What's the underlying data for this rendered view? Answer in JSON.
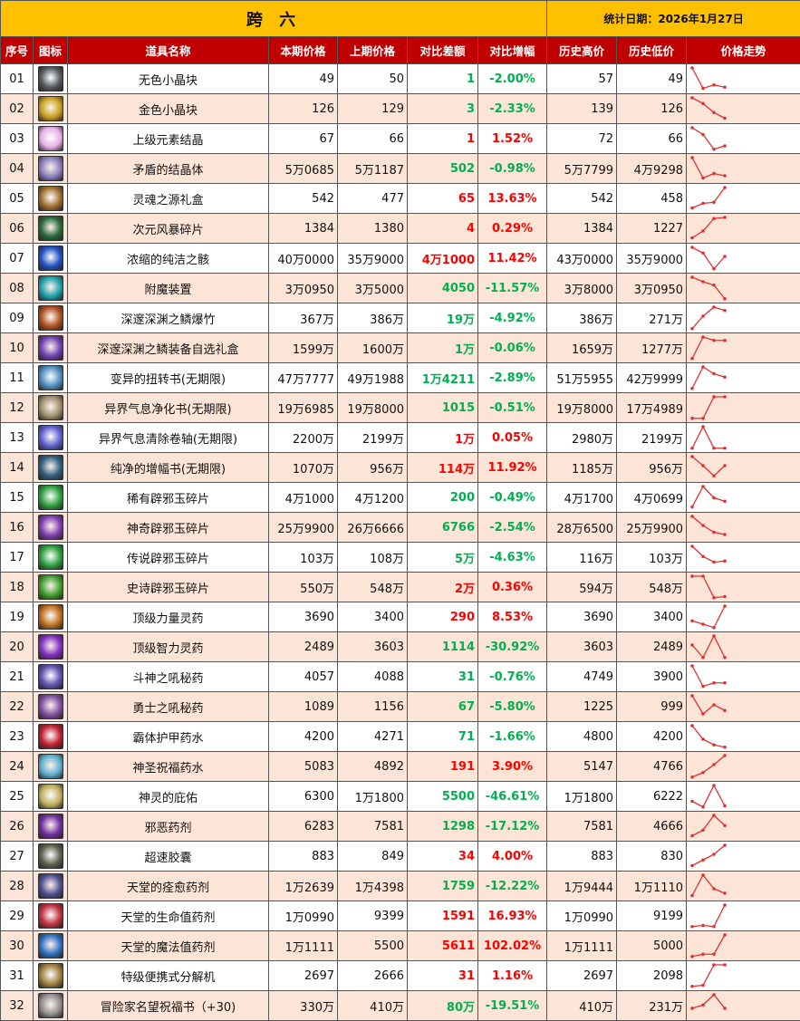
{
  "title": "跨 六",
  "date_label": "统计日期：2026年1月27日",
  "colors": {
    "header": "#C00000",
    "title_bg": "#FFC000",
    "alt_row": "#FCE4D6",
    "up": "#FF0000",
    "down": "#00B050",
    "trend_line": "#E03030"
  },
  "columns": [
    "序号",
    "图标",
    "道具名称",
    "本期价格",
    "上期价格",
    "对比差额",
    "对比增幅",
    "历史高价",
    "历史低价",
    "价格走势"
  ],
  "rows": [
    {
      "no": "01",
      "icon": "#555b60",
      "name": "无色小晶块",
      "cur": "49",
      "prev": "50",
      "diff": "1",
      "pct": "-2.00%",
      "high": "57",
      "low": "49",
      "dir": "down",
      "trend": [
        1,
        0.1,
        0.25,
        0.15
      ]
    },
    {
      "no": "02",
      "icon": "#c9a020",
      "name": "金色小晶块",
      "cur": "126",
      "prev": "129",
      "diff": "3",
      "pct": "-2.33%",
      "high": "139",
      "low": "126",
      "dir": "down",
      "trend": [
        1,
        0.75,
        0.35,
        0.1
      ]
    },
    {
      "no": "03",
      "icon": "#e8b0e8",
      "name": "上级元素结晶",
      "cur": "67",
      "prev": "66",
      "diff": "1",
      "pct": "1.52%",
      "high": "72",
      "low": "66",
      "dir": "up",
      "trend": [
        1,
        0.7,
        0.05,
        0.2
      ]
    },
    {
      "no": "04",
      "icon": "#8a80c0",
      "name": "矛盾的结晶体",
      "cur": "5万0685",
      "prev": "5万1187",
      "diff": "502",
      "pct": "-0.98%",
      "high": "5万7799",
      "low": "4万9298",
      "dir": "down",
      "trend": [
        1,
        0.1,
        0.3,
        0.2
      ]
    },
    {
      "no": "05",
      "icon": "#a07030",
      "name": "灵魂之源礼盒",
      "cur": "542",
      "prev": "477",
      "diff": "65",
      "pct": "13.63%",
      "high": "542",
      "low": "458",
      "dir": "up",
      "trend": [
        0.1,
        0.3,
        0.35,
        1
      ]
    },
    {
      "no": "06",
      "icon": "#2a6a3a",
      "name": "次元风暴碎片",
      "cur": "1384",
      "prev": "1380",
      "diff": "4",
      "pct": "0.29%",
      "high": "1384",
      "low": "1227",
      "dir": "up",
      "trend": [
        0.1,
        0.4,
        0.95,
        1
      ]
    },
    {
      "no": "07",
      "icon": "#2050c0",
      "name": "浓缩的纯洁之骸",
      "cur": "40万0000",
      "prev": "35万9000",
      "diff": "4万1000",
      "pct": "11.42%",
      "high": "43万0000",
      "low": "35万9000",
      "dir": "up",
      "trend": [
        1,
        0.75,
        0.05,
        0.6
      ]
    },
    {
      "no": "08",
      "icon": "#20a0a8",
      "name": "附魔装置",
      "cur": "3万0950",
      "prev": "3万5000",
      "diff": "4050",
      "pct": "-11.57%",
      "high": "3万8000",
      "low": "3万0950",
      "dir": "down",
      "trend": [
        1,
        0.8,
        0.65,
        0.05
      ]
    },
    {
      "no": "09",
      "icon": "#b05020",
      "name": "深邃深渊之鳞爆竹",
      "cur": "367万",
      "prev": "386万",
      "diff": "19万",
      "pct": "-4.92%",
      "high": "386万",
      "low": "271万",
      "dir": "down",
      "trend": [
        0.05,
        0.6,
        1,
        0.85
      ]
    },
    {
      "no": "10",
      "icon": "#7040b0",
      "name": "深邃深渊之鳞装备自选礼盒",
      "cur": "1599万",
      "prev": "1600万",
      "diff": "1万",
      "pct": "-0.06%",
      "high": "1659万",
      "low": "1277万",
      "dir": "down",
      "trend": [
        0.05,
        1,
        0.85,
        0.85
      ]
    },
    {
      "no": "11",
      "icon": "#5090c0",
      "name": "变异的扭转书(无期限)",
      "cur": "47万7777",
      "prev": "49万1988",
      "diff": "1万4211",
      "pct": "-2.89%",
      "high": "51万5955",
      "low": "42万9999",
      "dir": "down",
      "trend": [
        0.05,
        1,
        0.7,
        0.55
      ]
    },
    {
      "no": "12",
      "icon": "#a09070",
      "name": "异界气息净化书(无期限)",
      "cur": "19万6985",
      "prev": "19万8000",
      "diff": "1015",
      "pct": "-0.51%",
      "high": "19万8000",
      "low": "17万4989",
      "dir": "down",
      "trend": [
        0.05,
        0.05,
        1,
        1
      ]
    },
    {
      "no": "13",
      "icon": "#6060d0",
      "name": "异界气息清除卷轴(无期限)",
      "cur": "2200万",
      "prev": "2199万",
      "diff": "1万",
      "pct": "0.05%",
      "high": "2980万",
      "low": "2199万",
      "dir": "up",
      "trend": [
        0.05,
        1,
        0.05,
        0.05
      ]
    },
    {
      "no": "14",
      "icon": "#306080",
      "name": "纯净的增幅书(无期限)",
      "cur": "1070万",
      "prev": "956万",
      "diff": "114万",
      "pct": "11.92%",
      "high": "1185万",
      "low": "956万",
      "dir": "up",
      "trend": [
        1,
        0.6,
        0.15,
        0.6
      ]
    },
    {
      "no": "15",
      "icon": "#30a040",
      "name": "稀有辟邪玉碎片",
      "cur": "4万1000",
      "prev": "4万1200",
      "diff": "200",
      "pct": "-0.49%",
      "high": "4万1700",
      "low": "4万0699",
      "dir": "down",
      "trend": [
        0.1,
        1,
        0.5,
        0.35
      ]
    },
    {
      "no": "16",
      "icon": "#8040b0",
      "name": "神奇辟邪玉碎片",
      "cur": "25万9900",
      "prev": "26万6666",
      "diff": "6766",
      "pct": "-2.54%",
      "high": "28万6500",
      "low": "25万9900",
      "dir": "down",
      "trend": [
        1,
        0.6,
        0.3,
        0.2
      ]
    },
    {
      "no": "17",
      "icon": "#30a040",
      "name": "传说辟邪玉碎片",
      "cur": "103万",
      "prev": "108万",
      "diff": "5万",
      "pct": "-4.63%",
      "high": "116万",
      "low": "103万",
      "dir": "down",
      "trend": [
        1,
        0.55,
        0.3,
        0.35
      ]
    },
    {
      "no": "18",
      "icon": "#40a030",
      "name": "史诗辟邪玉碎片",
      "cur": "550万",
      "prev": "548万",
      "diff": "2万",
      "pct": "0.36%",
      "high": "594万",
      "low": "548万",
      "dir": "up",
      "trend": [
        1,
        1,
        0.05,
        0.1
      ]
    },
    {
      "no": "19",
      "icon": "#c07020",
      "name": "顶级力量灵药",
      "cur": "3690",
      "prev": "3400",
      "diff": "290",
      "pct": "8.53%",
      "high": "3690",
      "low": "3400",
      "dir": "up",
      "trend": [
        0.35,
        0.2,
        0.05,
        1
      ]
    },
    {
      "no": "20",
      "icon": "#8030c0",
      "name": "顶级智力灵药",
      "cur": "2489",
      "prev": "3603",
      "diff": "1114",
      "pct": "-30.92%",
      "high": "3603",
      "low": "2489",
      "dir": "down",
      "trend": [
        0.6,
        0.05,
        1,
        0.05
      ]
    },
    {
      "no": "21",
      "icon": "#6050b0",
      "name": "斗神之吼秘药",
      "cur": "4057",
      "prev": "4088",
      "diff": "31",
      "pct": "-0.76%",
      "high": "4749",
      "low": "3900",
      "dir": "down",
      "trend": [
        1,
        0.1,
        0.25,
        0.25
      ]
    },
    {
      "no": "22",
      "icon": "#8050a0",
      "name": "勇士之吼秘药",
      "cur": "1089",
      "prev": "1156",
      "diff": "67",
      "pct": "-5.80%",
      "high": "1225",
      "low": "999",
      "dir": "down",
      "trend": [
        1,
        0.2,
        0.6,
        0.35
      ]
    },
    {
      "no": "23",
      "icon": "#c02030",
      "name": "霸体护甲药水",
      "cur": "4200",
      "prev": "4271",
      "diff": "71",
      "pct": "-1.66%",
      "high": "4800",
      "low": "4200",
      "dir": "down",
      "trend": [
        1,
        0.4,
        0.15,
        0.05
      ]
    },
    {
      "no": "24",
      "icon": "#60b0d0",
      "name": "神圣祝福药水",
      "cur": "5083",
      "prev": "4892",
      "diff": "191",
      "pct": "3.90%",
      "high": "5147",
      "low": "4766",
      "dir": "up",
      "trend": [
        0.05,
        0.25,
        0.6,
        1
      ]
    },
    {
      "no": "25",
      "icon": "#c0b060",
      "name": "神灵的庇佑",
      "cur": "6300",
      "prev": "1万1800",
      "diff": "5500",
      "pct": "-46.61%",
      "high": "1万1800",
      "low": "6222",
      "dir": "down",
      "trend": [
        0.3,
        0.05,
        1,
        0.1
      ]
    },
    {
      "no": "26",
      "icon": "#7030a0",
      "name": "邪恶药剂",
      "cur": "6283",
      "prev": "7581",
      "diff": "1298",
      "pct": "-17.12%",
      "high": "7581",
      "low": "4666",
      "dir": "down",
      "trend": [
        0.1,
        0.35,
        1,
        0.55
      ]
    },
    {
      "no": "27",
      "icon": "#606050",
      "name": "超速胶囊",
      "cur": "883",
      "prev": "849",
      "diff": "34",
      "pct": "4.00%",
      "high": "883",
      "low": "830",
      "dir": "up",
      "trend": [
        0.1,
        0.35,
        0.6,
        1
      ]
    },
    {
      "no": "28",
      "icon": "#505090",
      "name": "天堂的痊愈药剂",
      "cur": "1万2639",
      "prev": "1万4398",
      "diff": "1759",
      "pct": "-12.22%",
      "high": "1万9444",
      "low": "1万1110",
      "dir": "down",
      "trend": [
        0.1,
        1,
        0.4,
        0.2
      ]
    },
    {
      "no": "29",
      "icon": "#c03040",
      "name": "天堂的生命值药剂",
      "cur": "1万0990",
      "prev": "9399",
      "diff": "1591",
      "pct": "16.93%",
      "high": "1万0990",
      "low": "9199",
      "dir": "up",
      "trend": [
        0.05,
        0.1,
        0.05,
        1
      ]
    },
    {
      "no": "30",
      "icon": "#3070c0",
      "name": "天堂的魔法值药剂",
      "cur": "1万1111",
      "prev": "5500",
      "diff": "5611",
      "pct": "102.02%",
      "high": "1万1111",
      "low": "5000",
      "dir": "up",
      "trend": [
        0.05,
        0.15,
        0.15,
        1
      ]
    },
    {
      "no": "31",
      "icon": "#a08040",
      "name": "特级便携式分解机",
      "cur": "2697",
      "prev": "2666",
      "diff": "31",
      "pct": "1.16%",
      "high": "2697",
      "low": "2098",
      "dir": "up",
      "trend": [
        0.05,
        0.1,
        1,
        1
      ]
    },
    {
      "no": "32",
      "icon": "#909090",
      "name": "冒险家名望祝福书（+30)",
      "cur": "330万",
      "prev": "410万",
      "diff": "80万",
      "pct": "-19.51%",
      "high": "410万",
      "low": "231万",
      "dir": "down",
      "trend": [
        0.4,
        0.55,
        1,
        0.4
      ]
    }
  ]
}
